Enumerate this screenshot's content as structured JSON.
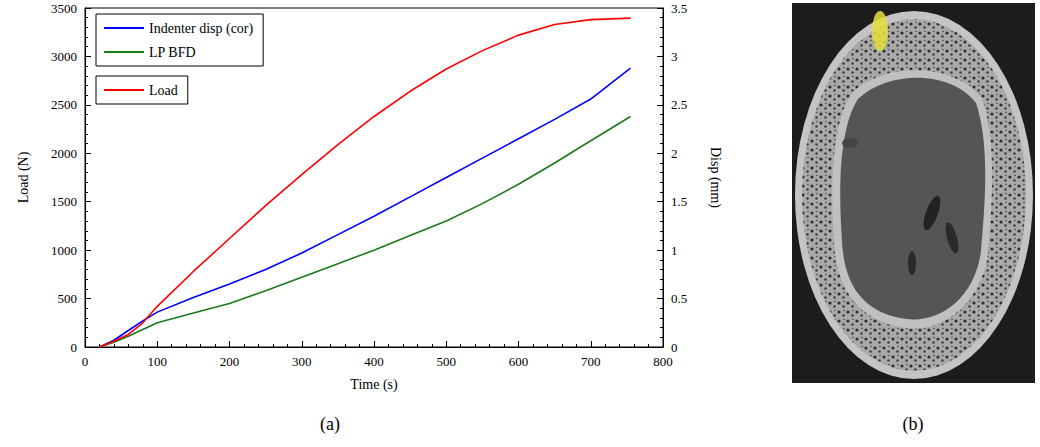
{
  "chart_data": {
    "type": "line",
    "x_label": "Time (s)",
    "y_label": "Load (N)",
    "y2_label": "Disp (mm)",
    "x": [
      20,
      40,
      60,
      80,
      100,
      150,
      200,
      250,
      300,
      350,
      400,
      450,
      500,
      550,
      600,
      650,
      700,
      755
    ],
    "series": [
      {
        "name": "Indenter disp (cor)",
        "color": "#0000ff",
        "axis": "y2",
        "values": [
          0,
          0.07,
          0.17,
          0.27,
          0.36,
          0.51,
          0.65,
          0.8,
          0.97,
          1.16,
          1.35,
          1.55,
          1.75,
          1.95,
          2.15,
          2.35,
          2.56,
          2.88
        ]
      },
      {
        "name": "LP BFD",
        "color": "#1a7a1a",
        "axis": "y2",
        "values": [
          0,
          0.05,
          0.11,
          0.18,
          0.25,
          0.35,
          0.45,
          0.58,
          0.72,
          0.86,
          1.0,
          1.15,
          1.3,
          1.48,
          1.68,
          1.9,
          2.13,
          2.38
        ]
      },
      {
        "name": "Load",
        "color": "#ff0000",
        "axis": "y",
        "values": [
          0,
          60,
          130,
          250,
          420,
          780,
          1120,
          1460,
          1780,
          2090,
          2380,
          2640,
          2870,
          3060,
          3220,
          3330,
          3380,
          3395
        ]
      }
    ],
    "xlim": [
      0,
      800
    ],
    "xticks": [
      0,
      100,
      200,
      300,
      400,
      500,
      600,
      700,
      800
    ],
    "ylim": [
      0,
      3500
    ],
    "yticks": [
      0,
      500,
      1000,
      1500,
      2000,
      2500,
      3000,
      3500
    ],
    "y2lim": [
      0,
      3.5
    ],
    "y2ticks": [
      0,
      0.5,
      1,
      1.5,
      2,
      2.5,
      3,
      3.5
    ],
    "grid": false,
    "legend": "upper left",
    "marker": "none",
    "line_style": "solid"
  },
  "panel_labels": [
    "(a)",
    "(b)"
  ]
}
